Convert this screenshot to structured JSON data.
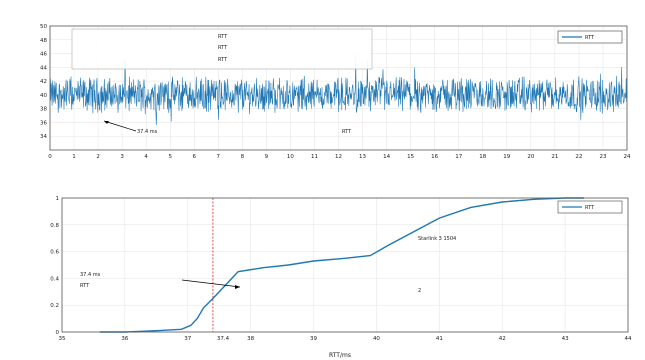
{
  "chart_data": [
    {
      "type": "line",
      "title": "",
      "xlabel": "",
      "ylabel": "",
      "x_unit_hint": "",
      "xlim": [
        0,
        24
      ],
      "ylim": [
        32,
        50
      ],
      "xticks": [
        "0",
        "1",
        "2",
        "3",
        "4",
        "5",
        "6",
        "7",
        "8",
        "9",
        "10",
        "11",
        "12",
        "13",
        "14",
        "15",
        "16",
        "17",
        "18",
        "19",
        "20",
        "21",
        "22",
        "23",
        "24"
      ],
      "yticks": [
        "34",
        "36",
        "38",
        "40",
        "42",
        "44",
        "46",
        "48",
        "50"
      ],
      "legend": {
        "position": "top-right",
        "entries": [
          {
            "name": "RTT",
            "color": "#1f77b4"
          }
        ]
      },
      "series": [
        {
          "name": "RTT",
          "color": "#1f77b4",
          "baseline": 40,
          "noise_range": [
            36,
            44
          ],
          "note": "dense noisy signal; values mostly 38–42 ms with spikes to ~45 and dips to ~35"
        }
      ],
      "stats_box": {
        "left": [
          {
            "label": "",
            "value": ""
          },
          {
            "label": "",
            "value": ""
          }
        ],
        "right": [
          {
            "label": "RTT",
            "value": ""
          },
          {
            "label": "RTT",
            "value": ""
          },
          {
            "label": "RTT",
            "value": ""
          }
        ]
      },
      "annotation": {
        "text": "37.4 ms",
        "arrow_to_x": 2.3,
        "arrow_to_y": 38.5
      },
      "annotation_right_label": "RTT"
    },
    {
      "type": "line",
      "title": "",
      "xlabel": "RTT/ms",
      "ylabel": "",
      "xlim": [
        35,
        44
      ],
      "ylim": [
        0,
        1
      ],
      "xticks": [
        "35",
        "36",
        "37",
        "38",
        "39",
        "40",
        "41",
        "42",
        "43",
        "44"
      ],
      "extra_xtick": "37.4",
      "yticks": [
        "0",
        "0.2",
        "0.4",
        "0.6",
        "0.8",
        "1"
      ],
      "legend": {
        "position": "top-right",
        "entries": [
          {
            "name": "RTT",
            "color": "#1f77b4"
          }
        ]
      },
      "vline_x": 37.4,
      "vline_color": "#d62728",
      "series": [
        {
          "name": "RTT",
          "color": "#1f77b4",
          "x": [
            35.6,
            36.0,
            36.5,
            36.9,
            37.05,
            37.15,
            37.25,
            37.4,
            37.6,
            37.8,
            38.2,
            38.6,
            39.0,
            39.5,
            39.9,
            40.2,
            40.6,
            41.0,
            41.5,
            42.0,
            42.5,
            43.0,
            43.3
          ],
          "y": [
            0.0,
            0.0,
            0.01,
            0.02,
            0.05,
            0.1,
            0.18,
            0.25,
            0.35,
            0.45,
            0.48,
            0.5,
            0.53,
            0.55,
            0.57,
            0.65,
            0.75,
            0.85,
            0.93,
            0.97,
            0.99,
            1.0,
            1.0
          ]
        }
      ],
      "annotation": {
        "text_line1": "37.4 ms",
        "text_line2": "RTT",
        "arrow_to_x": 37.45,
        "arrow_to_y": 0.26
      },
      "info_box": [
        "Starlink  3  1504",
        "",
        "",
        "",
        "2",
        "",
        ""
      ]
    }
  ]
}
